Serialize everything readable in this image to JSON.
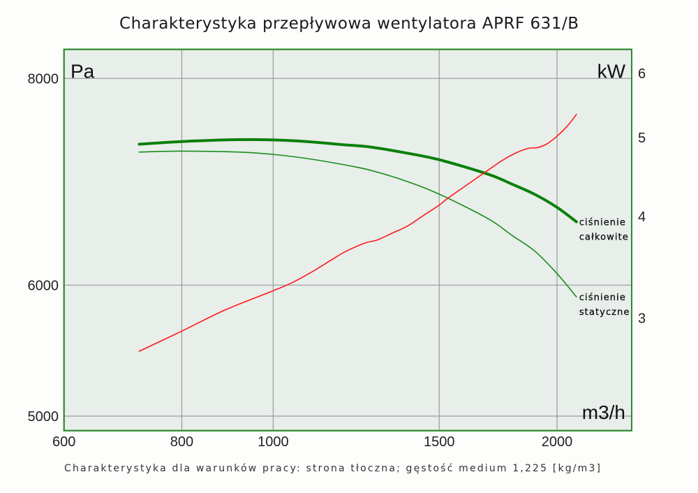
{
  "chart_data": {
    "type": "line",
    "title": "Charakterystyka przepływowa wentylatora APRF 631/B",
    "footnote": "Charakterystyka dla warunków pracy: strona tłoczna; gęstość medium 1,225 [kg/m3]",
    "xlabel": "m3/h",
    "ylabel": "Pa",
    "y2label": "kW",
    "xscale": "log",
    "yscale": "log",
    "y2scale": "log",
    "xlim": [
      600,
      2400
    ],
    "ylim": [
      4900,
      8330
    ],
    "y2lim": [
      2.18,
      6.42
    ],
    "xticks": [
      600,
      800,
      1000,
      1500,
      2000
    ],
    "yticks": [
      5000,
      6000,
      8000
    ],
    "y2ticks": [
      3,
      4,
      5,
      6
    ],
    "grid": true,
    "legend": "inline-right",
    "series": [
      {
        "label_lines": [
          "ciśnienie",
          "całkowite"
        ],
        "axis": "left",
        "unit": "Pa",
        "color": "#0a800a",
        "x": [
          721,
          800,
          916,
          1000,
          1086,
          1183,
          1267,
          1379,
          1500,
          1692,
          1791,
          1896,
          2000,
          2097
        ],
        "y": [
          7300,
          7327,
          7346,
          7344,
          7327,
          7296,
          7272,
          7214,
          7144,
          7000,
          6906,
          6806,
          6686,
          6553
        ]
      },
      {
        "label_lines": [
          "ciśnienie",
          "statyczne"
        ],
        "axis": "left",
        "unit": "Pa",
        "color": "#1a8c1a",
        "x": [
          721,
          800,
          916,
          1000,
          1086,
          1183,
          1267,
          1379,
          1500,
          1692,
          1791,
          1896,
          2000,
          2097
        ],
        "y": [
          7221,
          7230,
          7221,
          7197,
          7156,
          7098,
          7041,
          6939,
          6810,
          6579,
          6431,
          6288,
          6097,
          5903
        ]
      },
      {
        "label_lines": [],
        "axis": "right",
        "unit": "kW",
        "color": "#ff1a1a",
        "x": [
          721,
          800,
          890,
          1000,
          1050,
          1105,
          1150,
          1193,
          1252,
          1288,
          1341,
          1387,
          1448,
          1500,
          1536,
          1672,
          1751,
          1811,
          1864,
          1906,
          1950,
          2000,
          2052,
          2097
        ],
        "y": [
          2.73,
          2.89,
          3.07,
          3.24,
          3.32,
          3.43,
          3.53,
          3.62,
          3.71,
          3.74,
          3.82,
          3.89,
          4.02,
          4.13,
          4.22,
          4.52,
          4.69,
          4.79,
          4.85,
          4.86,
          4.91,
          5.02,
          5.17,
          5.34
        ]
      }
    ]
  },
  "colors": {
    "plot_background": "#e8eeea",
    "plot_border": "#2e8b2e",
    "grid": "#9a9a9a",
    "page_background": "#fdfdfb"
  }
}
